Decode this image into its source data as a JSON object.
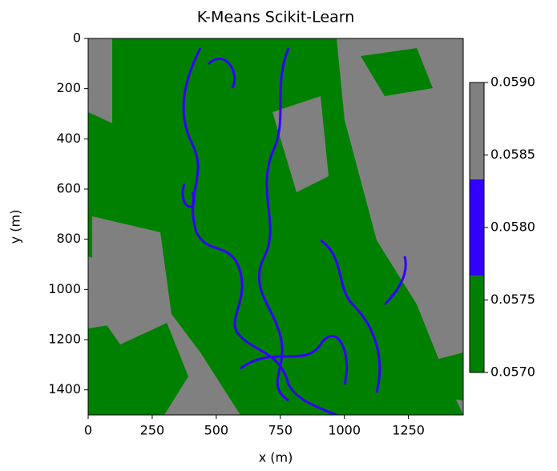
{
  "chart_data": {
    "type": "image",
    "title": "K-Means Scikit-Learn",
    "xlabel": "x (m)",
    "ylabel": "y (m)",
    "xlim": [
      0,
      1464
    ],
    "ylim": [
      1500,
      0
    ],
    "xticks": [
      0,
      250,
      500,
      750,
      1000,
      1250
    ],
    "yticks": [
      0,
      200,
      400,
      600,
      800,
      1000,
      1200,
      1400
    ],
    "colorbar": {
      "lim": [
        0.057,
        0.059
      ],
      "bounds": [
        0.057,
        0.057667,
        0.058333,
        0.059
      ],
      "colors": [
        "#008000",
        "#3300ff",
        "#808080"
      ],
      "ticks": [
        {
          "value": 0.057,
          "label": "0.0570"
        },
        {
          "value": 0.0575,
          "label": "0.0575"
        },
        {
          "value": 0.058,
          "label": "0.0580"
        },
        {
          "value": 0.0585,
          "label": "0.0585"
        },
        {
          "value": 0.059,
          "label": "0.0590"
        }
      ]
    }
  }
}
